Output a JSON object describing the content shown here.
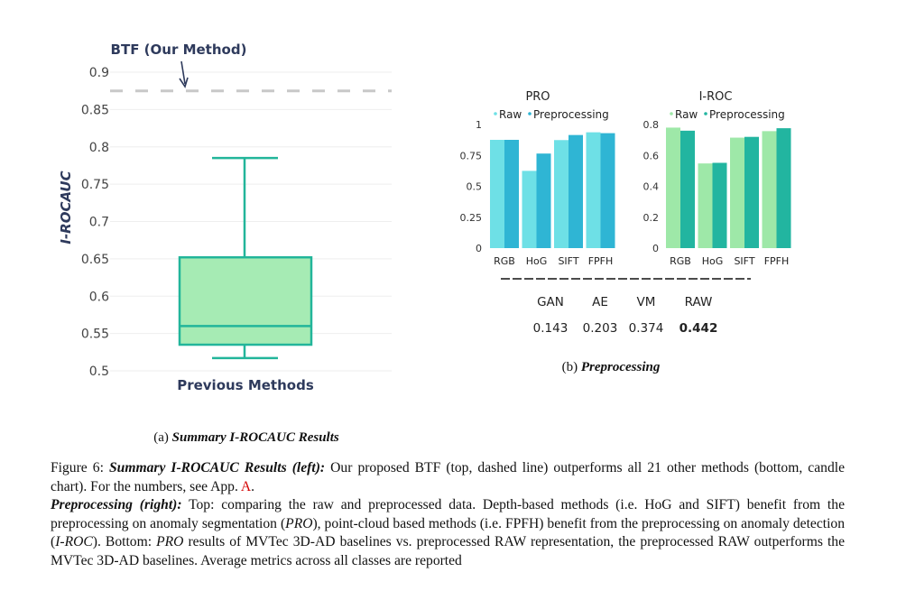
{
  "colors": {
    "box_fill": "#a6ebb4",
    "box_stroke": "#22b59a",
    "raw_pro": "#6ee0e6",
    "pre_pro": "#2fb5d4",
    "raw_iroc": "#9ee8a8",
    "pre_iroc": "#22b5a0",
    "dashed": "#c8c8c8",
    "label_dark": "#2e3a5c",
    "ref_link": "#d40000"
  },
  "chart_data": [
    {
      "type": "box",
      "ylabel": "I-ROCAUC",
      "ylim": [
        0.5,
        0.9
      ],
      "yticks": [
        "0.9",
        "0.85",
        "0.8",
        "0.75",
        "0.7",
        "0.65",
        "0.6",
        "0.55",
        "0.5"
      ],
      "category": "Previous Methods",
      "box": {
        "min": 0.517,
        "q1": 0.535,
        "median": 0.56,
        "q3": 0.652,
        "max": 0.785
      },
      "reference": {
        "label": "BTF (Our Method)",
        "value": 0.875,
        "style": "dashed"
      },
      "grid": true
    },
    {
      "type": "bar",
      "title": "PRO",
      "categories": [
        "RGB",
        "HoG",
        "SIFT",
        "FPFH"
      ],
      "legend": [
        "Raw",
        "Preprocessing"
      ],
      "legend_placement": "top",
      "ylim": [
        0,
        1
      ],
      "yticks": [
        "1",
        "0.75",
        "0.5",
        "0.25",
        "0"
      ],
      "series": [
        {
          "name": "Raw",
          "values": [
            0.876,
            0.625,
            0.874,
            0.937
          ]
        },
        {
          "name": "Preprocessing",
          "values": [
            0.876,
            0.765,
            0.915,
            0.93
          ]
        }
      ]
    },
    {
      "type": "bar",
      "title": "I-ROC",
      "categories": [
        "RGB",
        "HoG",
        "SIFT",
        "FPFH"
      ],
      "legend": [
        "Raw",
        "Preprocessing"
      ],
      "legend_placement": "top",
      "ylim": [
        0,
        0.8
      ],
      "yticks": [
        "0.8",
        "0.6",
        "0.4",
        "0.2",
        "0"
      ],
      "series": [
        {
          "name": "Raw",
          "values": [
            0.78,
            0.548,
            0.715,
            0.757
          ]
        },
        {
          "name": "Preprocessing",
          "values": [
            0.76,
            0.552,
            0.72,
            0.776
          ]
        }
      ]
    },
    {
      "type": "table",
      "columns": [
        "GAN",
        "AE",
        "VM",
        "RAW"
      ],
      "values": [
        "0.143",
        "0.203",
        "0.374",
        "0.442"
      ],
      "bold_index": 3
    }
  ],
  "subcaption_a": {
    "prefix": "(a) ",
    "title": "Summary I-ROCAUC Results"
  },
  "subcaption_b": {
    "prefix": "(b) ",
    "title": "Preprocessing"
  },
  "caption": {
    "p1_a": "Figure 6: ",
    "p1_b": "Summary I-ROCAUC Results (left):",
    "p1_c": " Our proposed BTF (top, dashed line) outperforms all 21 other methods (bottom, candle chart). For the numbers, see App. ",
    "p1_link": "A",
    "p1_d": ".",
    "p2_a": "Preprocessing (right):",
    "p2_b": " Top: comparing the raw and preprocessed data. Depth-based methods (i.e. HoG and SIFT) benefit from the preprocessing on anomaly segmentation (",
    "p2_c": "PRO",
    "p2_d": "), point-cloud based methods (i.e. FPFH) benefit from the preprocessing on anomaly detection (",
    "p2_e": "I-ROC",
    "p2_f": "). Bottom: ",
    "p2_g": "PRO",
    "p2_h": " results of MVTec 3D-AD baselines vs. preprocessed RAW representation, the preprocessed RAW outperforms the MVTec 3D-AD baselines. Average metrics across all classes are reported"
  }
}
